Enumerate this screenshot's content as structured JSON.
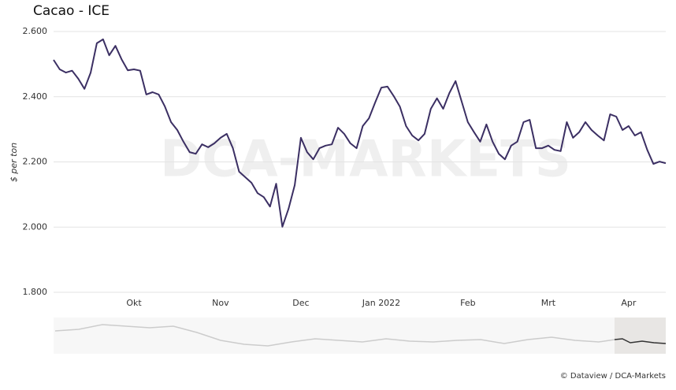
{
  "chart_data": {
    "type": "line",
    "title": "Cacao - ICE",
    "y_label": "$ per ton",
    "watermark": "DCA-MARKETS",
    "source": "© Dataview / DCA-Markets",
    "grid": true,
    "categories": [
      null,
      null,
      null,
      null,
      null,
      null,
      null,
      null,
      null,
      null,
      null,
      null,
      null,
      "Okt",
      null,
      null,
      null,
      null,
      null,
      null,
      null,
      null,
      null,
      null,
      null,
      null,
      null,
      "Nov",
      null,
      null,
      null,
      null,
      null,
      null,
      null,
      null,
      null,
      null,
      null,
      null,
      "Dec",
      null,
      null,
      null,
      null,
      null,
      null,
      null,
      null,
      null,
      null,
      null,
      null,
      "Jan 2022",
      null,
      null,
      null,
      null,
      null,
      null,
      null,
      null,
      null,
      null,
      null,
      null,
      null,
      "Feb",
      null,
      null,
      null,
      null,
      null,
      null,
      null,
      null,
      null,
      null,
      null,
      null,
      "Mrt",
      null,
      null,
      null,
      null,
      null,
      null,
      null,
      null,
      null,
      null,
      null,
      null,
      "Apr",
      null,
      null,
      null,
      null,
      null,
      null
    ],
    "series": [
      {
        "name": "Cacao - ICE",
        "color": "#3b2f63",
        "values": [
          2513,
          2484,
          2474,
          2480,
          2455,
          2424,
          2474,
          2564,
          2576,
          2527,
          2556,
          2515,
          2481,
          2484,
          2480,
          2407,
          2414,
          2407,
          2370,
          2322,
          2298,
          2262,
          2230,
          2225,
          2254,
          2245,
          2257,
          2274,
          2286,
          2242,
          2170,
          2153,
          2136,
          2104,
          2092,
          2063,
          2133,
          2001,
          2056,
          2129,
          2274,
          2230,
          2208,
          2242,
          2250,
          2254,
          2305,
          2286,
          2257,
          2242,
          2310,
          2334,
          2382,
          2428,
          2431,
          2402,
          2370,
          2310,
          2281,
          2266,
          2286,
          2363,
          2395,
          2363,
          2411,
          2448,
          2385,
          2322,
          2291,
          2262,
          2315,
          2262,
          2225,
          2208,
          2250,
          2262,
          2322,
          2329,
          2242,
          2242,
          2250,
          2237,
          2233,
          2322,
          2274,
          2291,
          2322,
          2298,
          2281,
          2266,
          2346,
          2339,
          2298,
          2310,
          2281,
          2291,
          2237,
          2194,
          2201,
          2196
        ]
      }
    ],
    "ylim": [
      1800,
      2600
    ],
    "yticks": [
      {
        "value": 1800,
        "label": "1.800"
      },
      {
        "value": 2000,
        "label": "2.000"
      },
      {
        "value": 2200,
        "label": "2.200"
      },
      {
        "value": 2400,
        "label": "2.400"
      },
      {
        "value": 2600,
        "label": "2.600"
      }
    ]
  }
}
